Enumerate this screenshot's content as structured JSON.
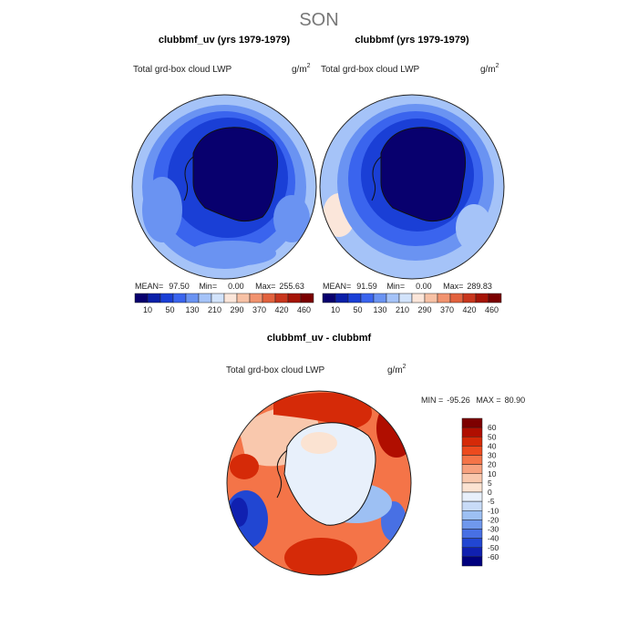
{
  "season_title": "SON",
  "chart_data": [
    {
      "type": "heatmap",
      "projection": "south-polar-stereographic",
      "title": "clubbmf_uv (yrs 1979-1979)",
      "subtitle": "Total grd-box cloud LWP",
      "units": "g/m",
      "units_exp": "2",
      "stats": {
        "mean_label": "MEAN=",
        "mean": "97.50",
        "min_label": "Min=",
        "min": "0.00",
        "max_label": "Max=",
        "max": "255.63"
      },
      "colorbar": {
        "orientation": "horizontal",
        "levels": [
          "10",
          "50",
          "130",
          "210",
          "290",
          "370",
          "420",
          "460"
        ],
        "colors": [
          "#08006e",
          "#0a1fa8",
          "#1a3fd6",
          "#3a64ee",
          "#6a93f2",
          "#a5c3f8",
          "#d2e3fb",
          "#fbe6da",
          "#f7c1a5",
          "#f1936f",
          "#e2623e",
          "#c8361d",
          "#a51407",
          "#7a0000"
        ]
      }
    },
    {
      "type": "heatmap",
      "projection": "south-polar-stereographic",
      "title": "clubbmf (yrs 1979-1979)",
      "subtitle": "Total grd-box cloud LWP",
      "units": "g/m",
      "units_exp": "2",
      "stats": {
        "mean_label": "MEAN=",
        "mean": "91.59",
        "min_label": "Min=",
        "min": "0.00",
        "max_label": "Max=",
        "max": "289.83"
      },
      "colorbar": {
        "orientation": "horizontal",
        "levels": [
          "10",
          "50",
          "130",
          "210",
          "290",
          "370",
          "420",
          "460"
        ],
        "colors": [
          "#08006e",
          "#0a1fa8",
          "#1a3fd6",
          "#3a64ee",
          "#6a93f2",
          "#a5c3f8",
          "#d2e3fb",
          "#fbe6da",
          "#f7c1a5",
          "#f1936f",
          "#e2623e",
          "#c8361d",
          "#a51407",
          "#7a0000"
        ]
      }
    },
    {
      "type": "heatmap",
      "projection": "south-polar-stereographic",
      "title": "clubbmf_uv - clubbmf",
      "subtitle": "Total grd-box cloud LWP",
      "units": "g/m",
      "units_exp": "2",
      "stats": {
        "min_label": "MIN =",
        "min": "-95.26",
        "max_label": "MAX =",
        "max": "80.90"
      },
      "colorbar": {
        "orientation": "vertical",
        "levels": [
          "60",
          "50",
          "40",
          "30",
          "20",
          "10",
          "5",
          "0",
          "-5",
          "-10",
          "-20",
          "-30",
          "-40",
          "-50",
          "-60"
        ],
        "colors": [
          "#7d0000",
          "#b00e00",
          "#d52a08",
          "#ec4a1e",
          "#f47448",
          "#f7a17e",
          "#f9c8ad",
          "#fbe3d2",
          "#e8f0fb",
          "#c8dbf7",
          "#9dc0f3",
          "#7098ec",
          "#4870e4",
          "#2146d2",
          "#1020b0",
          "#00007e"
        ]
      }
    }
  ]
}
